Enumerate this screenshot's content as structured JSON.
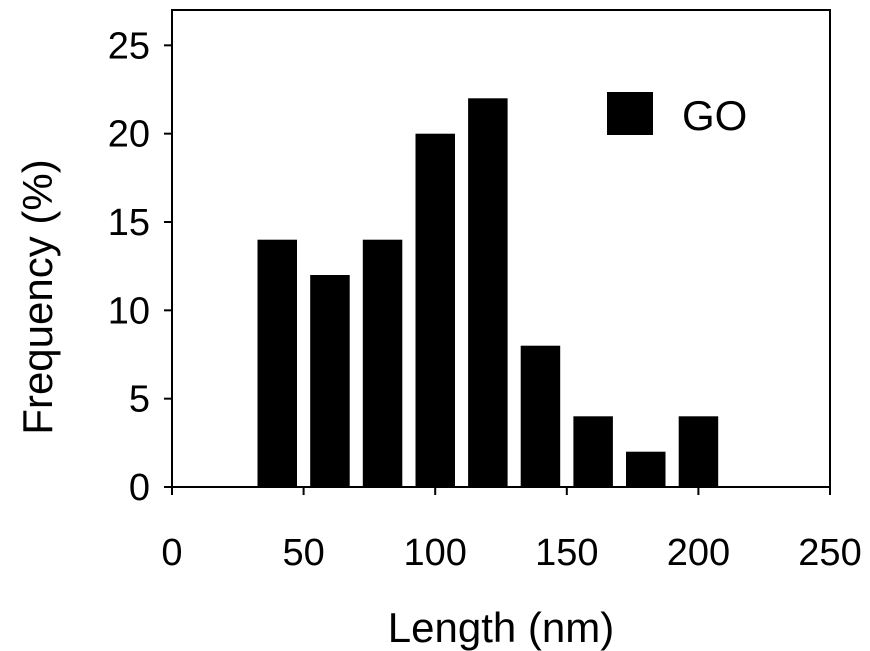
{
  "chart_data": {
    "type": "bar",
    "x": [
      40,
      60,
      80,
      100,
      120,
      140,
      160,
      180,
      200
    ],
    "series": [
      {
        "name": "GO",
        "values": [
          14,
          12,
          14,
          20,
          22,
          8,
          4,
          2,
          4
        ]
      }
    ],
    "xlabel": "Length (nm)",
    "ylabel": "Frequency (%)",
    "xlim": [
      0,
      250
    ],
    "ylim": [
      0,
      27
    ],
    "xticks": [
      "0",
      "50",
      "100",
      "150",
      "200",
      "250"
    ],
    "yticks": [
      "0",
      "5",
      "10",
      "15",
      "20",
      "25"
    ],
    "bar_width": 15,
    "grid": false,
    "legend_position": "top-right",
    "colors": {
      "bars": "#000000",
      "axes": "#000000",
      "background": "#ffffff"
    }
  }
}
